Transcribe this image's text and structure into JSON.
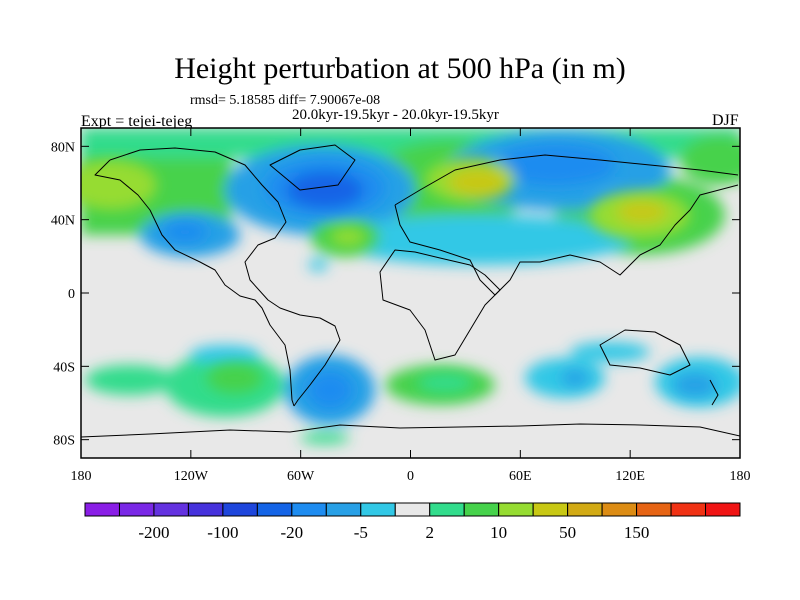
{
  "title": "Height perturbation at 500 hPa (in m)",
  "stats_line": "rmsd= 5.18585 diff= 7.90067e-08",
  "period_line": "20.0kyr-19.5kyr - 20.0kyr-19.5kyr",
  "left_label": "Expt = tejei-tejeg",
  "right_label": "DJF",
  "map": {
    "lat_ticks": [
      {
        "value": 80,
        "label": "80N"
      },
      {
        "value": 40,
        "label": "40N"
      },
      {
        "value": 0,
        "label": "0"
      },
      {
        "value": -40,
        "label": "40S"
      },
      {
        "value": -80,
        "label": "80S"
      }
    ],
    "lon_ticks": [
      {
        "value": -180,
        "label": "180"
      },
      {
        "value": -120,
        "label": "120W"
      },
      {
        "value": -60,
        "label": "60W"
      },
      {
        "value": 0,
        "label": "0"
      },
      {
        "value": 60,
        "label": "60E"
      },
      {
        "value": 120,
        "label": "120E"
      },
      {
        "value": 180,
        "label": "180"
      }
    ],
    "lon_range": [
      -180,
      180
    ],
    "lat_range": [
      -90,
      90
    ],
    "background_color": "#e8e8e8"
  },
  "colorbar": {
    "colors": [
      "#8a1ee6",
      "#7a28e6",
      "#6432e0",
      "#4632dc",
      "#1e46dc",
      "#1464e6",
      "#1e8cf0",
      "#28a0e6",
      "#32c8e6",
      "#e8e8e8",
      "#32dc8c",
      "#46d24b",
      "#96dc32",
      "#c8c814",
      "#d2aa14",
      "#dc8c14",
      "#e66414",
      "#f03214",
      "#f01414"
    ],
    "labels": [
      {
        "after_index": 1,
        "text": "-200"
      },
      {
        "after_index": 3,
        "text": "-100"
      },
      {
        "after_index": 5,
        "text": "-20"
      },
      {
        "after_index": 7,
        "text": "-5"
      },
      {
        "after_index": 9,
        "text": "2"
      },
      {
        "after_index": 11,
        "text": "10"
      },
      {
        "after_index": 13,
        "text": "50"
      },
      {
        "after_index": 15,
        "text": "150"
      }
    ]
  }
}
